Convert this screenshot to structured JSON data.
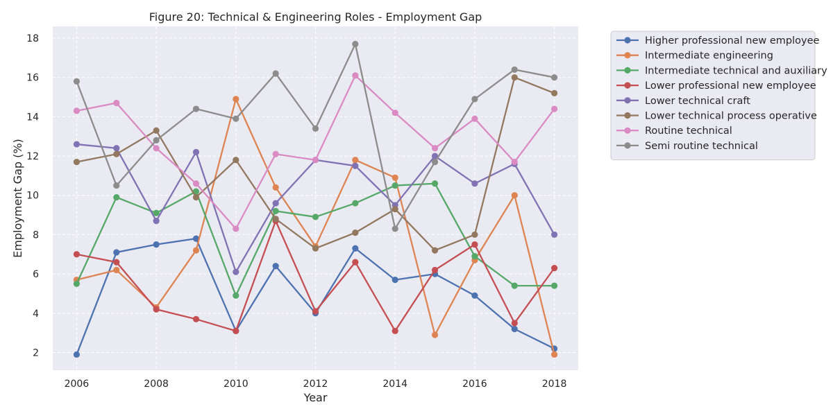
{
  "chart_data": {
    "type": "line",
    "title": "Figure 20: Technical & Engineering Roles - Employment Gap",
    "xlabel": "Year",
    "ylabel": "Employment Gap (%)",
    "x": [
      2006,
      2007,
      2008,
      2009,
      2010,
      2011,
      2012,
      2013,
      2014,
      2015,
      2016,
      2017,
      2018
    ],
    "xticks": [
      2006,
      2008,
      2010,
      2012,
      2014,
      2016,
      2018
    ],
    "yticks": [
      2,
      4,
      6,
      8,
      10,
      12,
      14,
      16,
      18
    ],
    "xlim": [
      2005.4,
      2018.6
    ],
    "ylim": [
      1.1,
      18.6
    ],
    "grid": true,
    "legend_position": "outside-right-top",
    "series": [
      {
        "name": "Higher professional new employee",
        "color": "#4c72b0",
        "values": [
          1.9,
          7.1,
          7.5,
          7.8,
          3.1,
          6.4,
          4.0,
          7.3,
          5.7,
          6.0,
          4.9,
          3.2,
          2.2
        ]
      },
      {
        "name": "Intermediate engineering",
        "color": "#dd8452",
        "values": [
          5.7,
          6.2,
          4.3,
          7.2,
          14.9,
          10.4,
          7.4,
          11.8,
          10.9,
          2.9,
          6.7,
          10.0,
          1.9
        ]
      },
      {
        "name": "Intermediate technical and auxiliary",
        "color": "#55a868",
        "values": [
          5.5,
          9.9,
          9.1,
          10.2,
          4.9,
          9.2,
          8.9,
          9.6,
          10.5,
          10.6,
          6.9,
          5.4,
          5.4
        ]
      },
      {
        "name": "Lower professional new employee",
        "color": "#c44e52",
        "values": [
          7.0,
          6.6,
          4.2,
          3.7,
          3.1,
          8.7,
          4.1,
          6.6,
          3.1,
          6.2,
          7.5,
          3.5,
          6.3
        ]
      },
      {
        "name": "Lower technical craft",
        "color": "#8172b3",
        "values": [
          12.6,
          12.4,
          8.7,
          12.2,
          6.1,
          9.6,
          11.8,
          11.5,
          9.5,
          12.0,
          10.6,
          11.6,
          8.0
        ]
      },
      {
        "name": "Lower technical process operative",
        "color": "#937860",
        "values": [
          11.7,
          12.1,
          13.3,
          9.9,
          11.8,
          8.8,
          7.3,
          8.1,
          9.3,
          7.2,
          8.0,
          16.0,
          15.2
        ]
      },
      {
        "name": "Routine technical",
        "color": "#da8bc3",
        "values": [
          14.3,
          14.7,
          12.4,
          10.6,
          8.3,
          12.1,
          11.8,
          16.1,
          14.2,
          12.4,
          13.9,
          11.7,
          14.4
        ]
      },
      {
        "name": "Semi routine technical",
        "color": "#8c8c8c",
        "values": [
          15.8,
          10.5,
          12.8,
          14.4,
          13.9,
          16.2,
          13.4,
          17.7,
          8.3,
          11.7,
          14.9,
          16.4,
          16.0
        ]
      }
    ],
    "style": {
      "plot_background": "#eaeaf2",
      "grid_color": "#ffffff"
    }
  }
}
